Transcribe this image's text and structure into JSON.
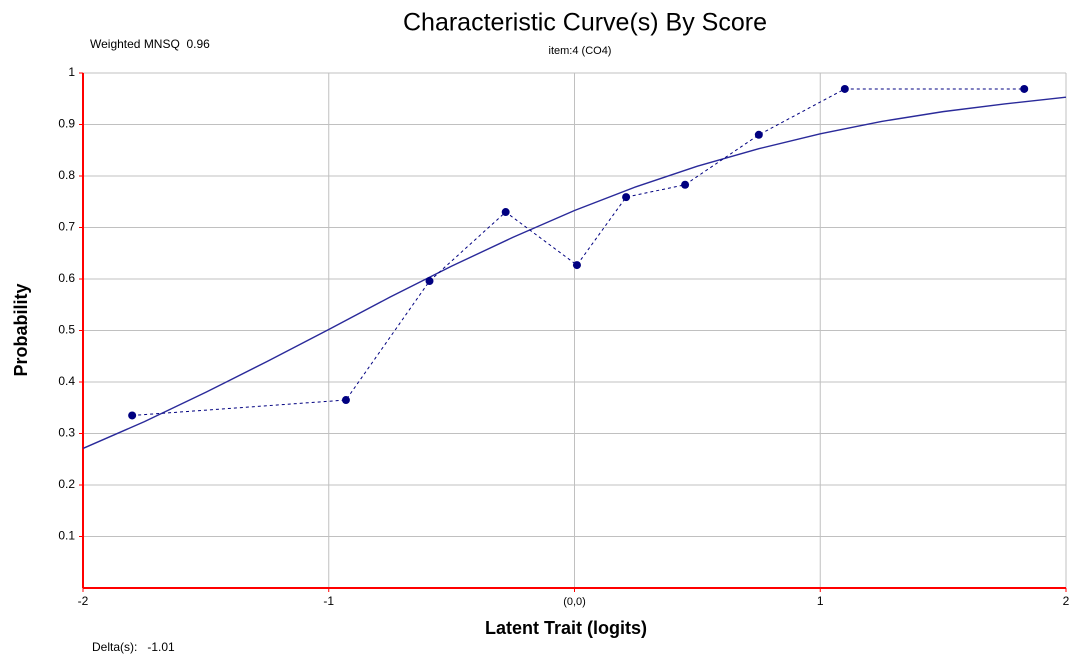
{
  "chart_data": {
    "type": "line",
    "title": "Characteristic Curve(s) By Score",
    "subtitle": "item:4 (CO4)",
    "annotations": [
      "Weighted MNSQ  0.96",
      "Delta(s):   -1.01"
    ],
    "x_label": "Latent Trait (logits)",
    "y_label": "Probability",
    "xlim": [
      -2,
      2
    ],
    "ylim": [
      0,
      1
    ],
    "xticks": [
      -2,
      -1,
      {
        "value": 0,
        "label": "(0,0)"
      },
      1,
      2
    ],
    "yticks": [
      0.1,
      0.2,
      0.3,
      0.4,
      0.5,
      0.6,
      0.7,
      0.8,
      0.9,
      1
    ],
    "grid": true,
    "axis_color": "#ff0000",
    "series": [
      {
        "color": "#2a2a9a",
        "style": "solid",
        "markers": false,
        "x": [
          -2,
          -1.75,
          -1.5,
          -1.25,
          -1,
          -0.75,
          -0.5,
          -0.25,
          0,
          0.25,
          0.5,
          0.75,
          1,
          1.25,
          1.5,
          1.75,
          2
        ],
        "values": [
          0.271,
          0.323,
          0.38,
          0.44,
          0.502,
          0.565,
          0.625,
          0.681,
          0.733,
          0.779,
          0.819,
          0.853,
          0.882,
          0.906,
          0.925,
          0.94,
          0.953
        ]
      },
      {
        "color": "#000080",
        "style": "dashed",
        "markers": true,
        "x": [
          -1.8,
          -0.93,
          -0.59,
          -0.28,
          0.01,
          0.21,
          0.45,
          0.75,
          1.1,
          1.83
        ],
        "values": [
          0.335,
          0.365,
          0.596,
          0.73,
          0.627,
          0.759,
          0.783,
          0.88,
          0.969,
          0.969
        ]
      }
    ]
  }
}
